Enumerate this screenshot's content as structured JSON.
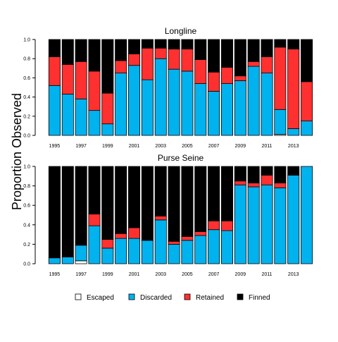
{
  "figure": {
    "ylabel": "Proportion Observed",
    "categories_order": [
      "Escaped",
      "Discarded",
      "Retained",
      "Finned"
    ],
    "legend": [
      {
        "label": "Escaped",
        "color": "#ffffff"
      },
      {
        "label": "Discarded",
        "color": "#00b2ee"
      },
      {
        "label": "Retained",
        "color": "#ff3030"
      },
      {
        "label": "Finned",
        "color": "#000000"
      }
    ]
  },
  "chart_data": [
    {
      "type": "bar",
      "stacked": true,
      "title": "Longline",
      "ylim": [
        0,
        1
      ],
      "yticks": [
        "0.0",
        "0.2",
        "0.4",
        "0.6",
        "0.8",
        "1.0"
      ],
      "xtick_labels": [
        "1995",
        "1997",
        "1999",
        "2001",
        "2003",
        "2005",
        "2007",
        "2009",
        "2011",
        "2013"
      ],
      "categories": [
        "1995",
        "1996",
        "1997",
        "1998",
        "1999",
        "2000",
        "2001",
        "2002",
        "2003",
        "2004",
        "2005",
        "2006",
        "2007",
        "2008",
        "2009",
        "2010",
        "2011",
        "2012",
        "2013",
        "2014"
      ],
      "series": [
        {
          "name": "Escaped",
          "values": [
            0,
            0,
            0,
            0,
            0,
            0,
            0,
            0,
            0,
            0,
            0,
            0,
            0,
            0,
            0,
            0,
            0,
            0.01,
            0,
            0
          ]
        },
        {
          "name": "Discarded",
          "values": [
            0.52,
            0.43,
            0.38,
            0.26,
            0.12,
            0.65,
            0.73,
            0.58,
            0.8,
            0.69,
            0.67,
            0.54,
            0.46,
            0.54,
            0.57,
            0.72,
            0.65,
            0.26,
            0.07,
            0.15
          ]
        },
        {
          "name": "Retained",
          "values": [
            0.3,
            0.31,
            0.39,
            0.41,
            0.32,
            0.13,
            0.12,
            0.33,
            0.11,
            0.21,
            0.23,
            0.25,
            0.2,
            0.17,
            0.05,
            0.05,
            0.17,
            0.65,
            0.83,
            0.41
          ]
        },
        {
          "name": "Finned",
          "values": [
            0.18,
            0.26,
            0.23,
            0.33,
            0.56,
            0.22,
            0.15,
            0.09,
            0.09,
            0.1,
            0.1,
            0.21,
            0.34,
            0.29,
            0.38,
            0.23,
            0.18,
            0.08,
            0.1,
            0.44
          ]
        }
      ]
    },
    {
      "type": "bar",
      "stacked": true,
      "title": "Purse Seine",
      "ylim": [
        0,
        1
      ],
      "yticks": [
        "0.0",
        "0.2",
        "0.4",
        "0.6",
        "0.8",
        "1.0"
      ],
      "xtick_labels": [
        "1995",
        "1997",
        "1999",
        "2001",
        "2003",
        "2005",
        "2007",
        "2009",
        "2011",
        "2013"
      ],
      "categories": [
        "1995",
        "1996",
        "1997",
        "1998",
        "1999",
        "2000",
        "2001",
        "2002",
        "2003",
        "2004",
        "2005",
        "2006",
        "2007",
        "2008",
        "2009",
        "2010",
        "2011",
        "2012",
        "2013",
        "2014"
      ],
      "series": [
        {
          "name": "Escaped",
          "values": [
            0,
            0,
            0.03,
            0,
            0,
            0,
            0,
            0,
            0,
            0,
            0,
            0,
            0,
            0,
            0,
            0,
            0,
            0,
            0,
            0
          ]
        },
        {
          "name": "Discarded",
          "values": [
            0.06,
            0.07,
            0.16,
            0.39,
            0.16,
            0.26,
            0.26,
            0.24,
            0.45,
            0.2,
            0.24,
            0.29,
            0.35,
            0.34,
            0.81,
            0.79,
            0.81,
            0.78,
            0.91,
            1.0
          ]
        },
        {
          "name": "Retained",
          "values": [
            0,
            0,
            0,
            0.12,
            0.09,
            0.05,
            0.11,
            0,
            0.04,
            0.03,
            0.04,
            0.04,
            0.09,
            0.1,
            0.04,
            0.04,
            0.1,
            0.05,
            0,
            0
          ]
        },
        {
          "name": "Finned",
          "values": [
            0.94,
            0.93,
            0.81,
            0.49,
            0.75,
            0.69,
            0.63,
            0.76,
            0.51,
            0.77,
            0.72,
            0.67,
            0.56,
            0.56,
            0.15,
            0.17,
            0.09,
            0.17,
            0.09,
            0
          ]
        }
      ]
    }
  ]
}
